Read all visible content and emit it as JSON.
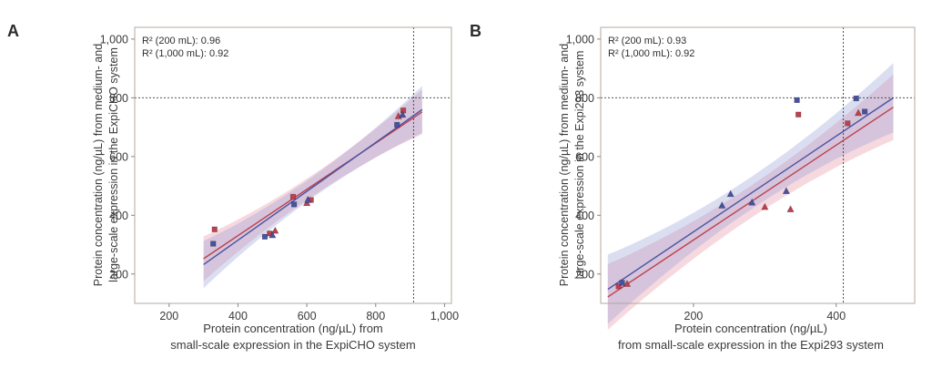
{
  "figure": {
    "panels": [
      {
        "label": "A",
        "annotations": [
          "R² (200 mL): 0.96",
          "R² (1,000 mL): 0.92"
        ],
        "ylabel_line1": "Protein concentration (ng/µL) from medium- and",
        "ylabel_line2": "large-scale expression in the ExpiCHO system",
        "xlabel_line1": "Protein concentration (ng/µL) from",
        "xlabel_line2": "small-scale expression in the ExpiCHO system"
      },
      {
        "label": "B",
        "annotations": [
          "R² (200 mL): 0.93",
          "R² (1,000 mL): 0.92"
        ],
        "ylabel_line1": "Protein concentration (ng/µL) from medium- and",
        "ylabel_line2": "large-scale expression in the Expi293 system",
        "xlabel_line1": "Protein concentration (ng/µL)",
        "xlabel_line2": "from small-scale expression in the Expi293 system"
      }
    ]
  },
  "chart_data": [
    {
      "type": "scatter",
      "panel": "A",
      "title": "",
      "xlabel": "Protein concentration (ng/µL) from small-scale expression in the ExpiCHO system",
      "ylabel": "Protein concentration (ng/µL) from medium- and large-scale expression in the ExpiCHO system",
      "xlim": [
        100,
        1020
      ],
      "ylim": [
        100,
        1040
      ],
      "xtick_values": [
        200,
        400,
        600,
        800,
        1000
      ],
      "xtick_labels": [
        "200",
        "400",
        "600",
        "800",
        "1,000"
      ],
      "ytick_values": [
        200,
        400,
        600,
        800,
        1000
      ],
      "ytick_labels": [
        "200",
        "400",
        "600",
        "800",
        "1,000"
      ],
      "reference_lines": {
        "y": 800,
        "x": 910
      },
      "r_squared": {
        "200 mL": 0.96,
        "1,000 mL": 0.92
      },
      "series": [
        {
          "name": "200 mL",
          "color": "#bf404e",
          "band_color": "#e4899a",
          "band_opacity": 0.32,
          "fit_line": {
            "x": [
              300,
              935
            ],
            "y": [
              252,
              752
            ]
          },
          "band_halfwidth": {
            "mid": 36,
            "end": 76
          },
          "points": [
            {
              "x": 332,
              "y": 352,
              "marker": "square"
            },
            {
              "x": 492,
              "y": 338,
              "marker": "square"
            },
            {
              "x": 508,
              "y": 347,
              "marker": "triangle"
            },
            {
              "x": 560,
              "y": 463,
              "marker": "square"
            },
            {
              "x": 600,
              "y": 441,
              "marker": "triangle"
            },
            {
              "x": 612,
              "y": 452,
              "marker": "square"
            },
            {
              "x": 866,
              "y": 737,
              "marker": "triangle"
            },
            {
              "x": 880,
              "y": 757,
              "marker": "square"
            }
          ]
        },
        {
          "name": "1,000 mL",
          "color": "#4852a2",
          "band_color": "#8e97d3",
          "band_opacity": 0.32,
          "fit_line": {
            "x": [
              300,
              935
            ],
            "y": [
              232,
              760
            ]
          },
          "band_halfwidth": {
            "mid": 36,
            "end": 80
          },
          "points": [
            {
              "x": 328,
              "y": 303,
              "marker": "square"
            },
            {
              "x": 478,
              "y": 327,
              "marker": "square"
            },
            {
              "x": 500,
              "y": 332,
              "marker": "triangle"
            },
            {
              "x": 563,
              "y": 437,
              "marker": "square"
            },
            {
              "x": 603,
              "y": 452,
              "marker": "triangle"
            },
            {
              "x": 862,
              "y": 708,
              "marker": "square"
            },
            {
              "x": 878,
              "y": 742,
              "marker": "triangle"
            }
          ]
        }
      ]
    },
    {
      "type": "scatter",
      "panel": "B",
      "title": "",
      "xlabel": "Protein concentration (ng/µL) from small-scale expression in the Expi293 system",
      "ylabel": "Protein concentration (ng/µL) from medium- and large-scale expression in the Expi293 system",
      "xlim": [
        70,
        510
      ],
      "ylim": [
        100,
        1040
      ],
      "xtick_values": [
        200,
        400
      ],
      "xtick_labels": [
        "200",
        "400"
      ],
      "ytick_values": [
        200,
        400,
        600,
        800,
        1000
      ],
      "ytick_labels": [
        "200",
        "400",
        "600",
        "800",
        "1,000"
      ],
      "reference_lines": {
        "y": 800,
        "x": 410
      },
      "r_squared": {
        "200 mL": 0.93,
        "1,000 mL": 0.92
      },
      "series": [
        {
          "name": "200 mL",
          "color": "#bf404e",
          "band_color": "#e4899a",
          "band_opacity": 0.32,
          "fit_line": {
            "x": [
              80,
              480
            ],
            "y": [
              122,
              768
            ]
          },
          "band_halfwidth": {
            "mid": 55,
            "end": 112
          },
          "points": [
            {
              "x": 95,
              "y": 158,
              "marker": "square"
            },
            {
              "x": 107,
              "y": 166,
              "marker": "triangle"
            },
            {
              "x": 300,
              "y": 428,
              "marker": "triangle"
            },
            {
              "x": 336,
              "y": 420,
              "marker": "triangle"
            },
            {
              "x": 347,
              "y": 743,
              "marker": "square"
            },
            {
              "x": 416,
              "y": 713,
              "marker": "square"
            },
            {
              "x": 431,
              "y": 748,
              "marker": "triangle"
            }
          ]
        },
        {
          "name": "1,000 mL",
          "color": "#4852a2",
          "band_color": "#8e97d3",
          "band_opacity": 0.32,
          "fit_line": {
            "x": [
              80,
              480
            ],
            "y": [
              148,
              800
            ]
          },
          "band_halfwidth": {
            "mid": 55,
            "end": 118
          },
          "points": [
            {
              "x": 100,
              "y": 170,
              "marker": "square"
            },
            {
              "x": 240,
              "y": 433,
              "marker": "triangle"
            },
            {
              "x": 252,
              "y": 472,
              "marker": "triangle"
            },
            {
              "x": 282,
              "y": 443,
              "marker": "triangle"
            },
            {
              "x": 330,
              "y": 482,
              "marker": "triangle"
            },
            {
              "x": 345,
              "y": 792,
              "marker": "square"
            },
            {
              "x": 428,
              "y": 798,
              "marker": "square"
            },
            {
              "x": 440,
              "y": 753,
              "marker": "square"
            }
          ]
        }
      ]
    }
  ]
}
